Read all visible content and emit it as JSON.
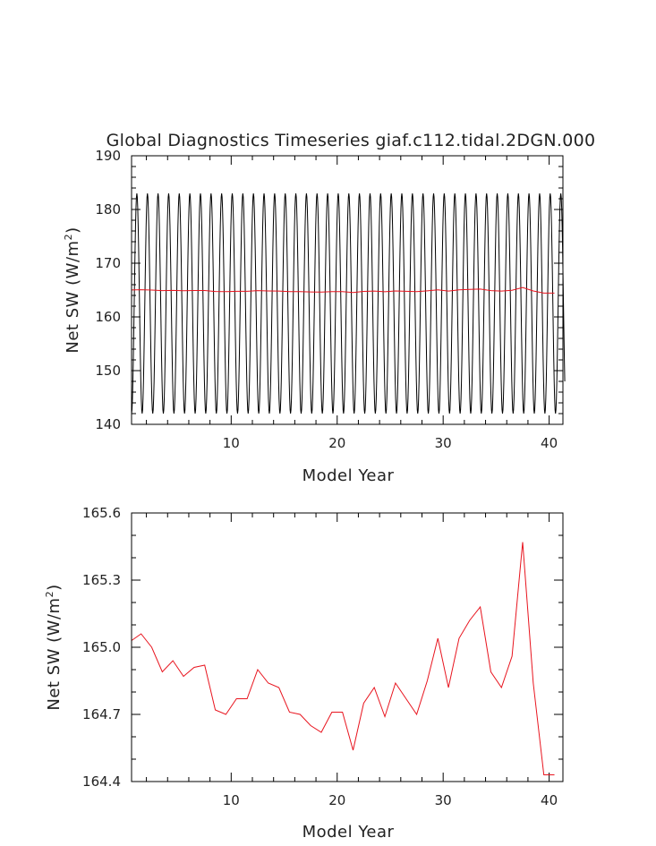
{
  "chart_data": [
    {
      "type": "line",
      "title": "Global Diagnostics Timeseries giaf.c112.tidal.2DGN.000",
      "xlabel": "Model Year",
      "ylabel": "Net SW (W/m²)",
      "ylabel_base": "Net SW (W/m",
      "ylabel_sup": "2",
      "ylabel_close": ")",
      "xlim": [
        0.6,
        41.3
      ],
      "ylim": [
        140,
        190
      ],
      "xticks": [
        10,
        20,
        30,
        40
      ],
      "yticks": [
        140,
        150,
        160,
        170,
        180,
        190
      ],
      "grid": false,
      "series": [
        {
          "color": "#000000",
          "kind": "seasonal-cycle",
          "years": 41,
          "start": 0.6,
          "amplitude_low": 142,
          "amplitude_high": 183
        },
        {
          "color": "#e8141e",
          "x": [
            0.6,
            1.5,
            2.5,
            3.5,
            4.5,
            5.5,
            6.5,
            7.5,
            8.5,
            9.5,
            10.5,
            11.5,
            12.5,
            13.5,
            14.5,
            15.5,
            16.5,
            17.5,
            18.5,
            19.5,
            20.5,
            21.5,
            22.5,
            23.5,
            24.5,
            25.5,
            26.5,
            27.5,
            28.5,
            29.5,
            30.5,
            31.5,
            32.5,
            33.5,
            34.5,
            35.5,
            36.5,
            37.5,
            38.5,
            39.5,
            40.5
          ],
          "y": [
            165.03,
            165.06,
            165.0,
            164.89,
            164.94,
            164.87,
            164.91,
            164.92,
            164.72,
            164.7,
            164.77,
            164.77,
            164.9,
            164.84,
            164.82,
            164.71,
            164.7,
            164.65,
            164.62,
            164.71,
            164.71,
            164.54,
            164.75,
            164.82,
            164.69,
            164.84,
            164.77,
            164.7,
            164.85,
            165.04,
            164.82,
            165.04,
            165.12,
            165.18,
            164.89,
            164.82,
            164.96,
            165.47,
            164.84,
            164.43,
            164.43
          ]
        }
      ]
    },
    {
      "type": "line",
      "title": "",
      "xlabel": "Model Year",
      "ylabel": "Net SW (W/m²)",
      "ylabel_base": "Net SW (W/m",
      "ylabel_sup": "2",
      "ylabel_close": ")",
      "xlim": [
        0.6,
        41.3
      ],
      "ylim": [
        164.4,
        165.6
      ],
      "xticks": [
        10,
        20,
        30,
        40
      ],
      "yticks": [
        164.4,
        164.7,
        165.0,
        165.3,
        165.6
      ],
      "ytick_labels": [
        "164.4",
        "164.7",
        "165.0",
        "165.3",
        "165.6"
      ],
      "grid": false,
      "series": [
        {
          "color": "#e8141e",
          "x": [
            0.6,
            1.5,
            2.5,
            3.5,
            4.5,
            5.5,
            6.5,
            7.5,
            8.5,
            9.5,
            10.5,
            11.5,
            12.5,
            13.5,
            14.5,
            15.5,
            16.5,
            17.5,
            18.5,
            19.5,
            20.5,
            21.5,
            22.5,
            23.5,
            24.5,
            25.5,
            26.5,
            27.5,
            28.5,
            29.5,
            30.5,
            31.5,
            32.5,
            33.5,
            34.5,
            35.5,
            36.5,
            37.5,
            38.5,
            39.5,
            40.5
          ],
          "y": [
            165.03,
            165.06,
            165.0,
            164.89,
            164.94,
            164.87,
            164.91,
            164.92,
            164.72,
            164.7,
            164.77,
            164.77,
            164.9,
            164.84,
            164.82,
            164.71,
            164.7,
            164.65,
            164.62,
            164.71,
            164.71,
            164.54,
            164.75,
            164.82,
            164.69,
            164.84,
            164.77,
            164.7,
            164.85,
            165.04,
            164.82,
            165.04,
            165.12,
            165.18,
            164.89,
            164.82,
            164.96,
            165.47,
            164.84,
            164.43,
            164.43
          ]
        }
      ]
    }
  ]
}
